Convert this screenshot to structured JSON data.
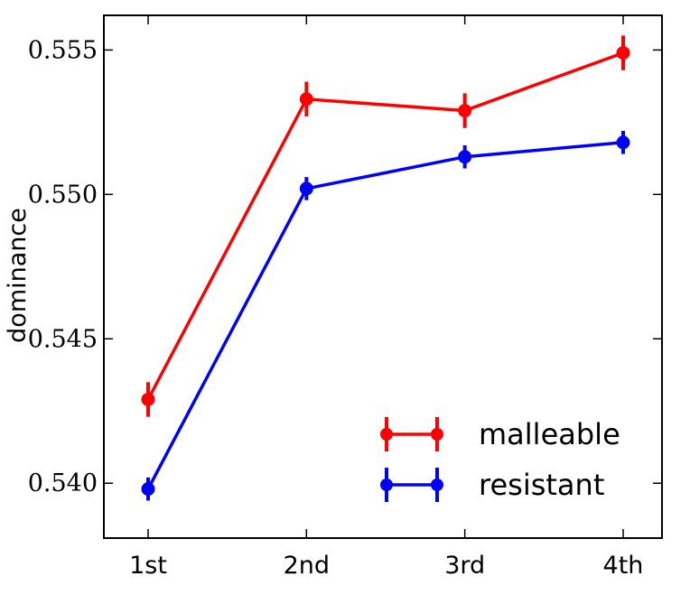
{
  "chart_data": {
    "type": "line",
    "title": "",
    "xlabel": "",
    "ylabel": "dominance",
    "categories": [
      "1st",
      "2nd",
      "3rd",
      "4th"
    ],
    "ylim": [
      0.5381,
      0.5562
    ],
    "yticks": [
      "0.540",
      "0.545",
      "0.550",
      "0.555"
    ],
    "ytick_values": [
      0.54,
      0.545,
      0.55,
      0.555
    ],
    "grid": false,
    "legend_position": "bottom-right",
    "error_bars": true,
    "series": [
      {
        "name": "malleable",
        "color": "#ff0000",
        "values": [
          0.5429,
          0.5533,
          0.5529,
          0.5549
        ],
        "errors": [
          0.0006,
          0.0006,
          0.0006,
          0.0006
        ]
      },
      {
        "name": "resistant",
        "color": "#0000ff",
        "values": [
          0.5398,
          0.5502,
          0.5513,
          0.5518
        ],
        "errors": [
          0.0004,
          0.0004,
          0.0004,
          0.0004
        ]
      }
    ]
  }
}
